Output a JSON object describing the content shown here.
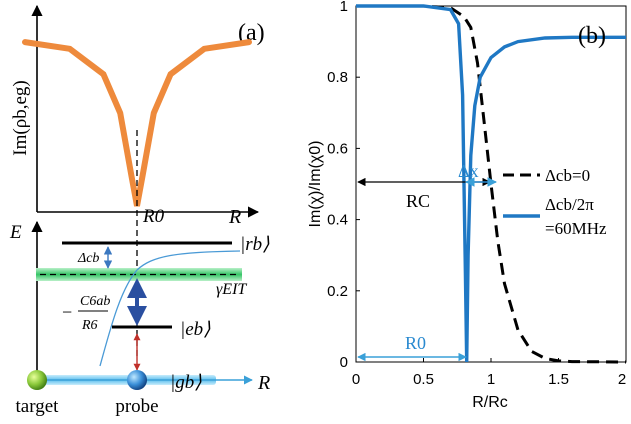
{
  "chart_data": [
    {
      "panel": "(a)",
      "type": "line",
      "ylabel": "Im(ρb,eg)",
      "xlabel": "R",
      "x_marker": "R0",
      "series": [
        {
          "shape": "lorentzian-dip",
          "dip_at": "R0",
          "x": [
            -1.0,
            -0.6,
            -0.3,
            -0.15,
            -0.05,
            0,
            0.05,
            0.15,
            0.3,
            0.6,
            1.0
          ],
          "y": [
            0.97,
            0.93,
            0.78,
            0.55,
            0.18,
            0,
            0.18,
            0.55,
            0.78,
            0.93,
            0.97
          ]
        }
      ],
      "colors": {
        "curve": "#ee8a3c",
        "axes": "#000000"
      }
    },
    {
      "panel": "(a)",
      "type": "diagram",
      "energy_axis_label": "E",
      "distance_axis_label": "R",
      "levels": [
        "|rb⟩",
        "|eb⟩",
        "|gb⟩"
      ],
      "detuning_label": "Δcb",
      "eit_label": "γEIT",
      "interaction_label": {
        "prefix": "−",
        "numerator": "C6ab",
        "denominator": "R6"
      },
      "atoms": [
        "target",
        "probe"
      ],
      "colors": {
        "eit_band": "#3cc96a",
        "arrow_blue": "#2a4fa0",
        "arrow_red": "#c0302a",
        "ground_band": "#78c8ee"
      }
    },
    {
      "panel": "(b)",
      "type": "line",
      "xlabel": "R/Rc",
      "ylabel": "Im(χ)/Im(χ0)",
      "xlim": [
        0,
        2
      ],
      "ylim": [
        0,
        1
      ],
      "xticks": [
        "0",
        "0.5",
        "1",
        "1.5",
        "2"
      ],
      "yticks": [
        "0",
        "0.2",
        "0.4",
        "0.6",
        "0.8",
        "1"
      ],
      "series": [
        {
          "name": "Δcb=0",
          "style": "dashed",
          "color": "#000000",
          "x": [
            0,
            0.5,
            0.7,
            0.8,
            0.85,
            0.9,
            0.95,
            1.0,
            1.05,
            1.1,
            1.2,
            1.3,
            1.4,
            1.5,
            1.6,
            2.0
          ],
          "y": [
            1,
            1,
            0.995,
            0.97,
            0.94,
            0.84,
            0.67,
            0.5,
            0.34,
            0.22,
            0.09,
            0.03,
            0.01,
            0.003,
            0.001,
            0
          ]
        },
        {
          "name": "Δcb/2π =60MHz",
          "style": "solid",
          "color": "#1f78c4",
          "x": [
            0,
            0.5,
            0.7,
            0.76,
            0.79,
            0.81,
            0.82,
            0.83,
            0.85,
            0.88,
            0.92,
            1.0,
            1.1,
            1.2,
            1.4,
            1.6,
            2.0
          ],
          "y": [
            1,
            1,
            0.99,
            0.95,
            0.75,
            0.25,
            0.0,
            0.3,
            0.58,
            0.72,
            0.8,
            0.855,
            0.885,
            0.9,
            0.91,
            0.912,
            0.912
          ]
        }
      ],
      "annotations": {
        "delta_x": "Δx",
        "R_C": "RC",
        "R_0": "R0"
      },
      "legend_placement": "right",
      "grid": false
    }
  ],
  "labels": {
    "panel_a": "(a)",
    "panel_b": "(b)",
    "target": "target",
    "probe": "probe"
  }
}
